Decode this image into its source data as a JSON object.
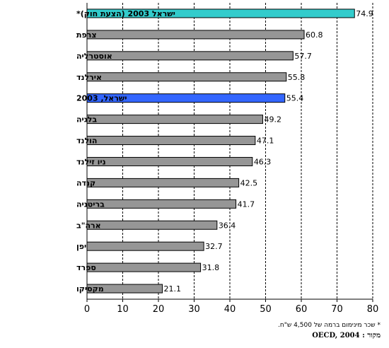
{
  "chart_data": {
    "type": "bar",
    "orientation": "horizontal",
    "categories": [
      "ישראל 2003 (הצעת חוק)*",
      "צרפת",
      "אוסטרליה",
      "אירלנד",
      "ישראל, 2003",
      "בלגיה",
      "הולנד",
      "ניו זילנד",
      "קנדה",
      "בריטניה",
      "ארה\"ב",
      "יפן",
      "ספרד",
      "מקסיקו"
    ],
    "values": [
      74.9,
      60.8,
      57.7,
      55.8,
      55.4,
      49.2,
      47.1,
      46.3,
      42.5,
      41.7,
      36.4,
      32.7,
      31.8,
      21.1
    ],
    "value_labels": [
      "74.9",
      "60.8",
      "57.7",
      "55.8",
      "55.4",
      "49.2",
      "47.1",
      "46.3",
      "42.5",
      "41.7",
      "36.4",
      "32.7",
      "31.8",
      "21.1"
    ],
    "bar_colors": [
      "#33cccc",
      "#969696",
      "#969696",
      "#969696",
      "#3366ff",
      "#969696",
      "#969696",
      "#969696",
      "#969696",
      "#969696",
      "#969696",
      "#969696",
      "#969696",
      "#969696"
    ],
    "xlim": [
      0,
      80
    ],
    "xticks": [
      0,
      10,
      20,
      30,
      40,
      50,
      60,
      70,
      80
    ],
    "grid": "vertical dashed",
    "legend": "none"
  },
  "footnotes": {
    "note": "* שכר מינימום ברמה של 4,500 ש\"ח.",
    "source": "מקור : OECD, 2004"
  }
}
